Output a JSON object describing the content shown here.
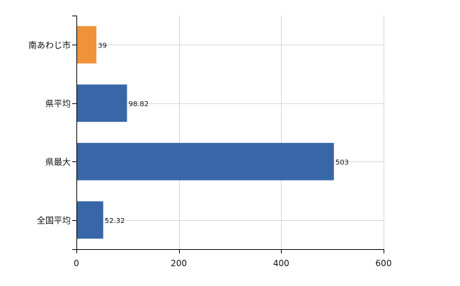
{
  "chart_data": {
    "type": "bar",
    "orientation": "horizontal",
    "categories": [
      "南あわじ市",
      "県平均",
      "県最大",
      "全国平均"
    ],
    "values": [
      39,
      98.82,
      503,
      52.32
    ],
    "value_labels": [
      "39",
      "98.82",
      "503",
      "52.32"
    ],
    "xlim": [
      0,
      600
    ],
    "x_ticks": [
      0,
      200,
      400,
      600
    ],
    "x_tick_labels": [
      "0",
      "200",
      "400",
      "600"
    ],
    "grid": true,
    "legend": "none",
    "colors": {
      "bars": [
        "#f0923a",
        "#3767a8",
        "#3767a8",
        "#3767a8"
      ],
      "grid": "#d7d7d7",
      "axis": "#000000"
    }
  }
}
